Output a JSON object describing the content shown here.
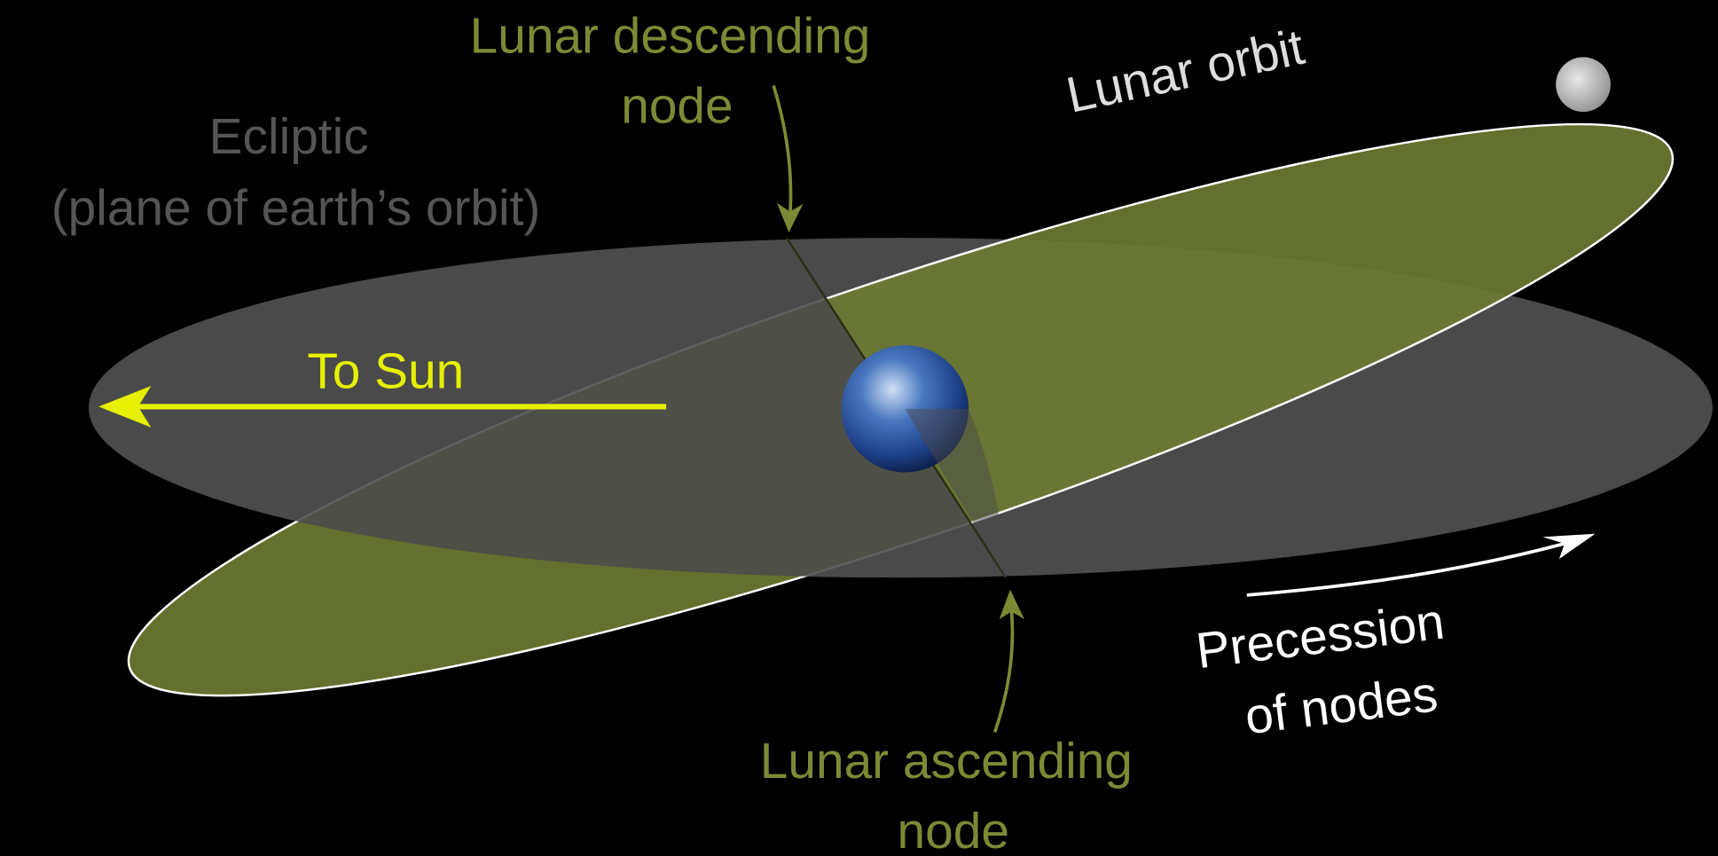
{
  "labels": {
    "lunar_descending_node": [
      "Lunar descending",
      "node"
    ],
    "lunar_orbit": "Lunar orbit",
    "ecliptic": [
      "Ecliptic",
      "(plane of earth’s orbit)"
    ],
    "to_sun": "To Sun",
    "precession_of_nodes": [
      "Precession",
      "of nodes"
    ],
    "lunar_ascending_node": [
      "Lunar ascending",
      "node"
    ]
  }
}
